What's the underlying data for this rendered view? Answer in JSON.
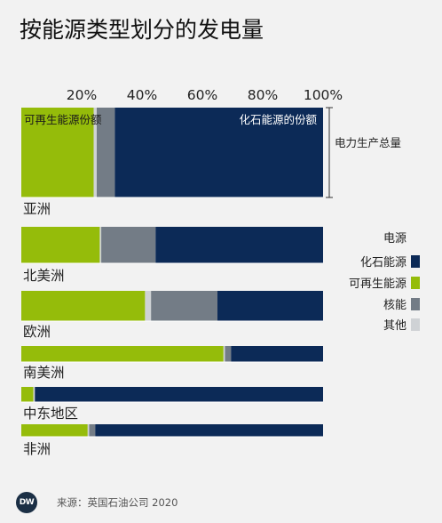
{
  "title": "按能源类型划分的发电量",
  "source": "来源：英国石油公司 2020",
  "logo_text": "DW",
  "colors": {
    "fossil": "#0c2a57",
    "renewable": "#95bc0a",
    "nuclear": "#737c86",
    "other": "#cfd2d5",
    "background": "#f2f2f2"
  },
  "annotations": {
    "renewable_share": "可再生能源份额",
    "fossil_share": "化石能源的份额",
    "total": "电力生产总量"
  },
  "chart_data": {
    "type": "bar",
    "orientation": "horizontal",
    "stacked": true,
    "title": "按能源类型划分的发电量",
    "xlim": [
      0,
      100
    ],
    "x_ticks": [
      "20%",
      "40%",
      "60%",
      "80%",
      "100%"
    ],
    "x_tick_values": [
      20,
      40,
      60,
      80,
      100
    ],
    "grid": false,
    "legend_position": "right",
    "legend_title": "电源",
    "categories": [
      "亚洲",
      "北美洲",
      "欧洲",
      "南美洲",
      "中东地区",
      "非洲"
    ],
    "series": [
      {
        "name": "可再生能源",
        "key": "renewable",
        "values": [
          24,
          26,
          41,
          67,
          4,
          22
        ]
      },
      {
        "name": "其他",
        "key": "other",
        "values": [
          1,
          0.5,
          2,
          0.5,
          0.5,
          0.5
        ]
      },
      {
        "name": "核能",
        "key": "nuclear",
        "values": [
          6,
          18,
          22,
          2,
          0,
          2
        ]
      },
      {
        "name": "化石能源",
        "key": "fossil",
        "values": [
          69,
          55.5,
          35,
          30.5,
          95.5,
          75.5
        ]
      }
    ],
    "legend_order": [
      "化石能源",
      "可再生能源",
      "核能",
      "其他"
    ]
  }
}
